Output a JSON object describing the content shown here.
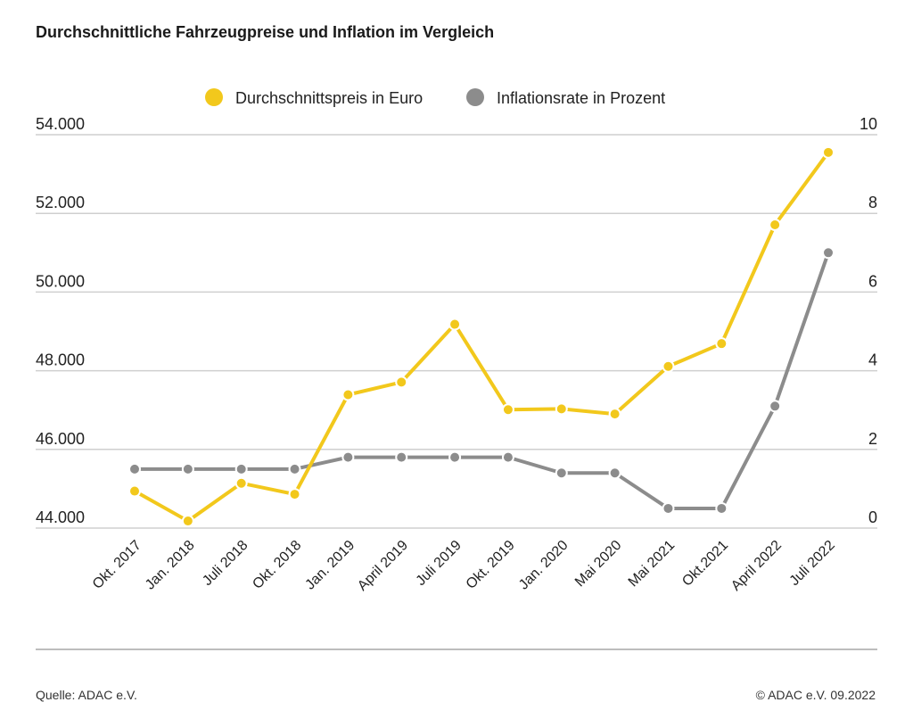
{
  "chart_data": {
    "type": "line",
    "title": "Durchschnittliche Fahrzeugpreise und Inflation im Vergleich",
    "categories": [
      "Okt. 2017",
      "Jan. 2018",
      "Juli 2018",
      "Okt. 2018",
      "Jan. 2019",
      "April 2019",
      "Juli 2019",
      "Okt. 2019",
      "Jan. 2020",
      "Mai 2020",
      "Mai 2021",
      "Okt.2021",
      "April 2022",
      "Juli 2022"
    ],
    "series": [
      {
        "name": "Durchschnittspreis in Euro",
        "axis": "left",
        "color": "#f2c81c",
        "values": [
          44940,
          44180,
          45140,
          44860,
          47390,
          47710,
          49180,
          47010,
          47030,
          46900,
          48110,
          48690,
          51710,
          53550
        ]
      },
      {
        "name": "Inflationsrate in Prozent",
        "axis": "right",
        "color": "#8c8c8c",
        "values": [
          1.5,
          1.5,
          1.5,
          1.5,
          1.8,
          1.8,
          1.8,
          1.8,
          1.4,
          1.4,
          0.5,
          0.5,
          3.1,
          7.0
        ]
      }
    ],
    "left_axis": {
      "ylim": [
        44000,
        54000
      ],
      "ticks": [
        "44.000",
        "46.000",
        "48.000",
        "50.000",
        "52.000",
        "54.000"
      ]
    },
    "right_axis": {
      "ylim": [
        0,
        10
      ],
      "ticks": [
        "0",
        "2",
        "4",
        "6",
        "8",
        "10"
      ]
    },
    "grid": true,
    "legend": "top-center"
  },
  "footer": {
    "source": "Quelle: ADAC e.V.",
    "copyright": "© ADAC e.V. 09.2022"
  }
}
